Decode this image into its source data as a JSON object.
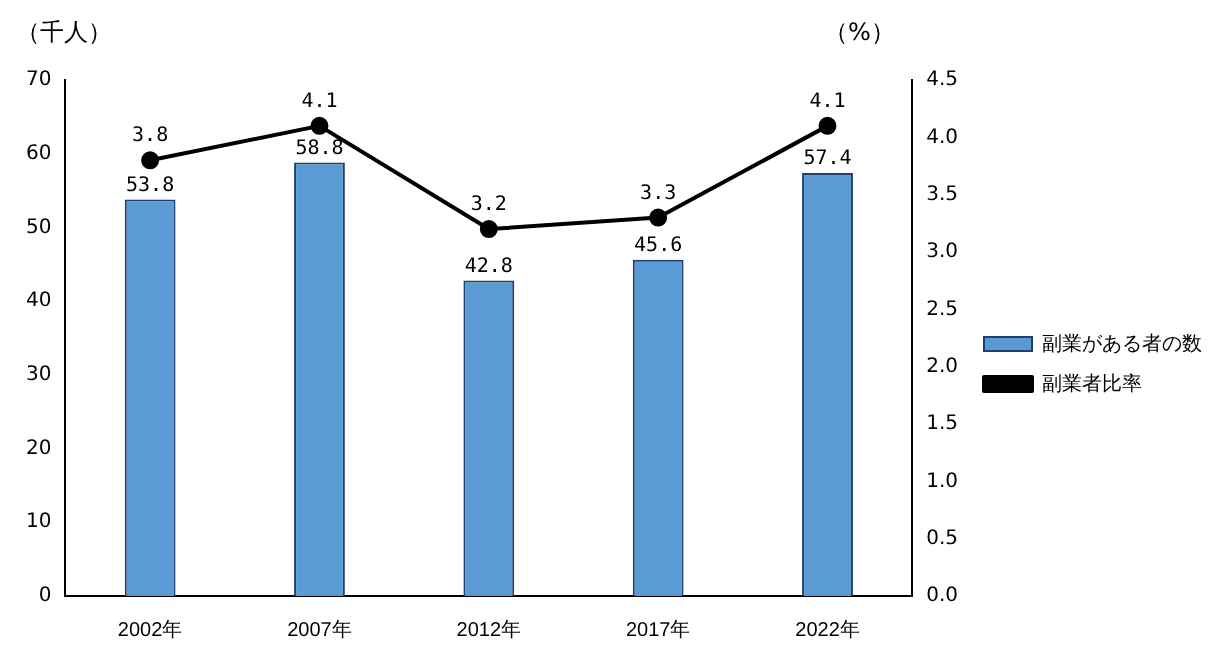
{
  "chart_data": {
    "type": "bar",
    "ylabel": "（千人）",
    "y2label": "（%）",
    "categories": [
      "2002年",
      "2007年",
      "2012年",
      "2017年",
      "2022年"
    ],
    "series": [
      {
        "name": "副業がある者の数",
        "color": "#5b9bd5",
        "values": [
          53.8,
          58.8,
          42.8,
          45.6,
          57.4
        ]
      },
      {
        "name": "副業者比率",
        "type": "line",
        "axis": "y2",
        "color": "#000000",
        "values": [
          3.8,
          4.1,
          3.2,
          3.3,
          4.1
        ]
      }
    ],
    "ylim": [
      0,
      70
    ],
    "yticks": [
      0,
      10,
      20,
      30,
      40,
      50,
      60,
      70
    ],
    "y2lim": [
      0,
      4.5
    ],
    "y2ticks": [
      {
        "value": 0,
        "label": "0.0"
      },
      {
        "value": 0.5,
        "label": "0.5"
      },
      {
        "value": 1,
        "label": "1.0"
      },
      {
        "value": 1.5,
        "label": "1.5"
      },
      {
        "value": 2,
        "label": "2.0"
      },
      {
        "value": 2.5,
        "label": "2.5"
      },
      {
        "value": 3,
        "label": "3.0"
      },
      {
        "value": 3.5,
        "label": "3.5"
      },
      {
        "value": 4,
        "label": "4.0"
      },
      {
        "value": 4.5,
        "label": "4.5"
      }
    ],
    "data_labels": true,
    "grid": false,
    "legend": "right",
    "marker": "circle",
    "line_style": "solid"
  }
}
